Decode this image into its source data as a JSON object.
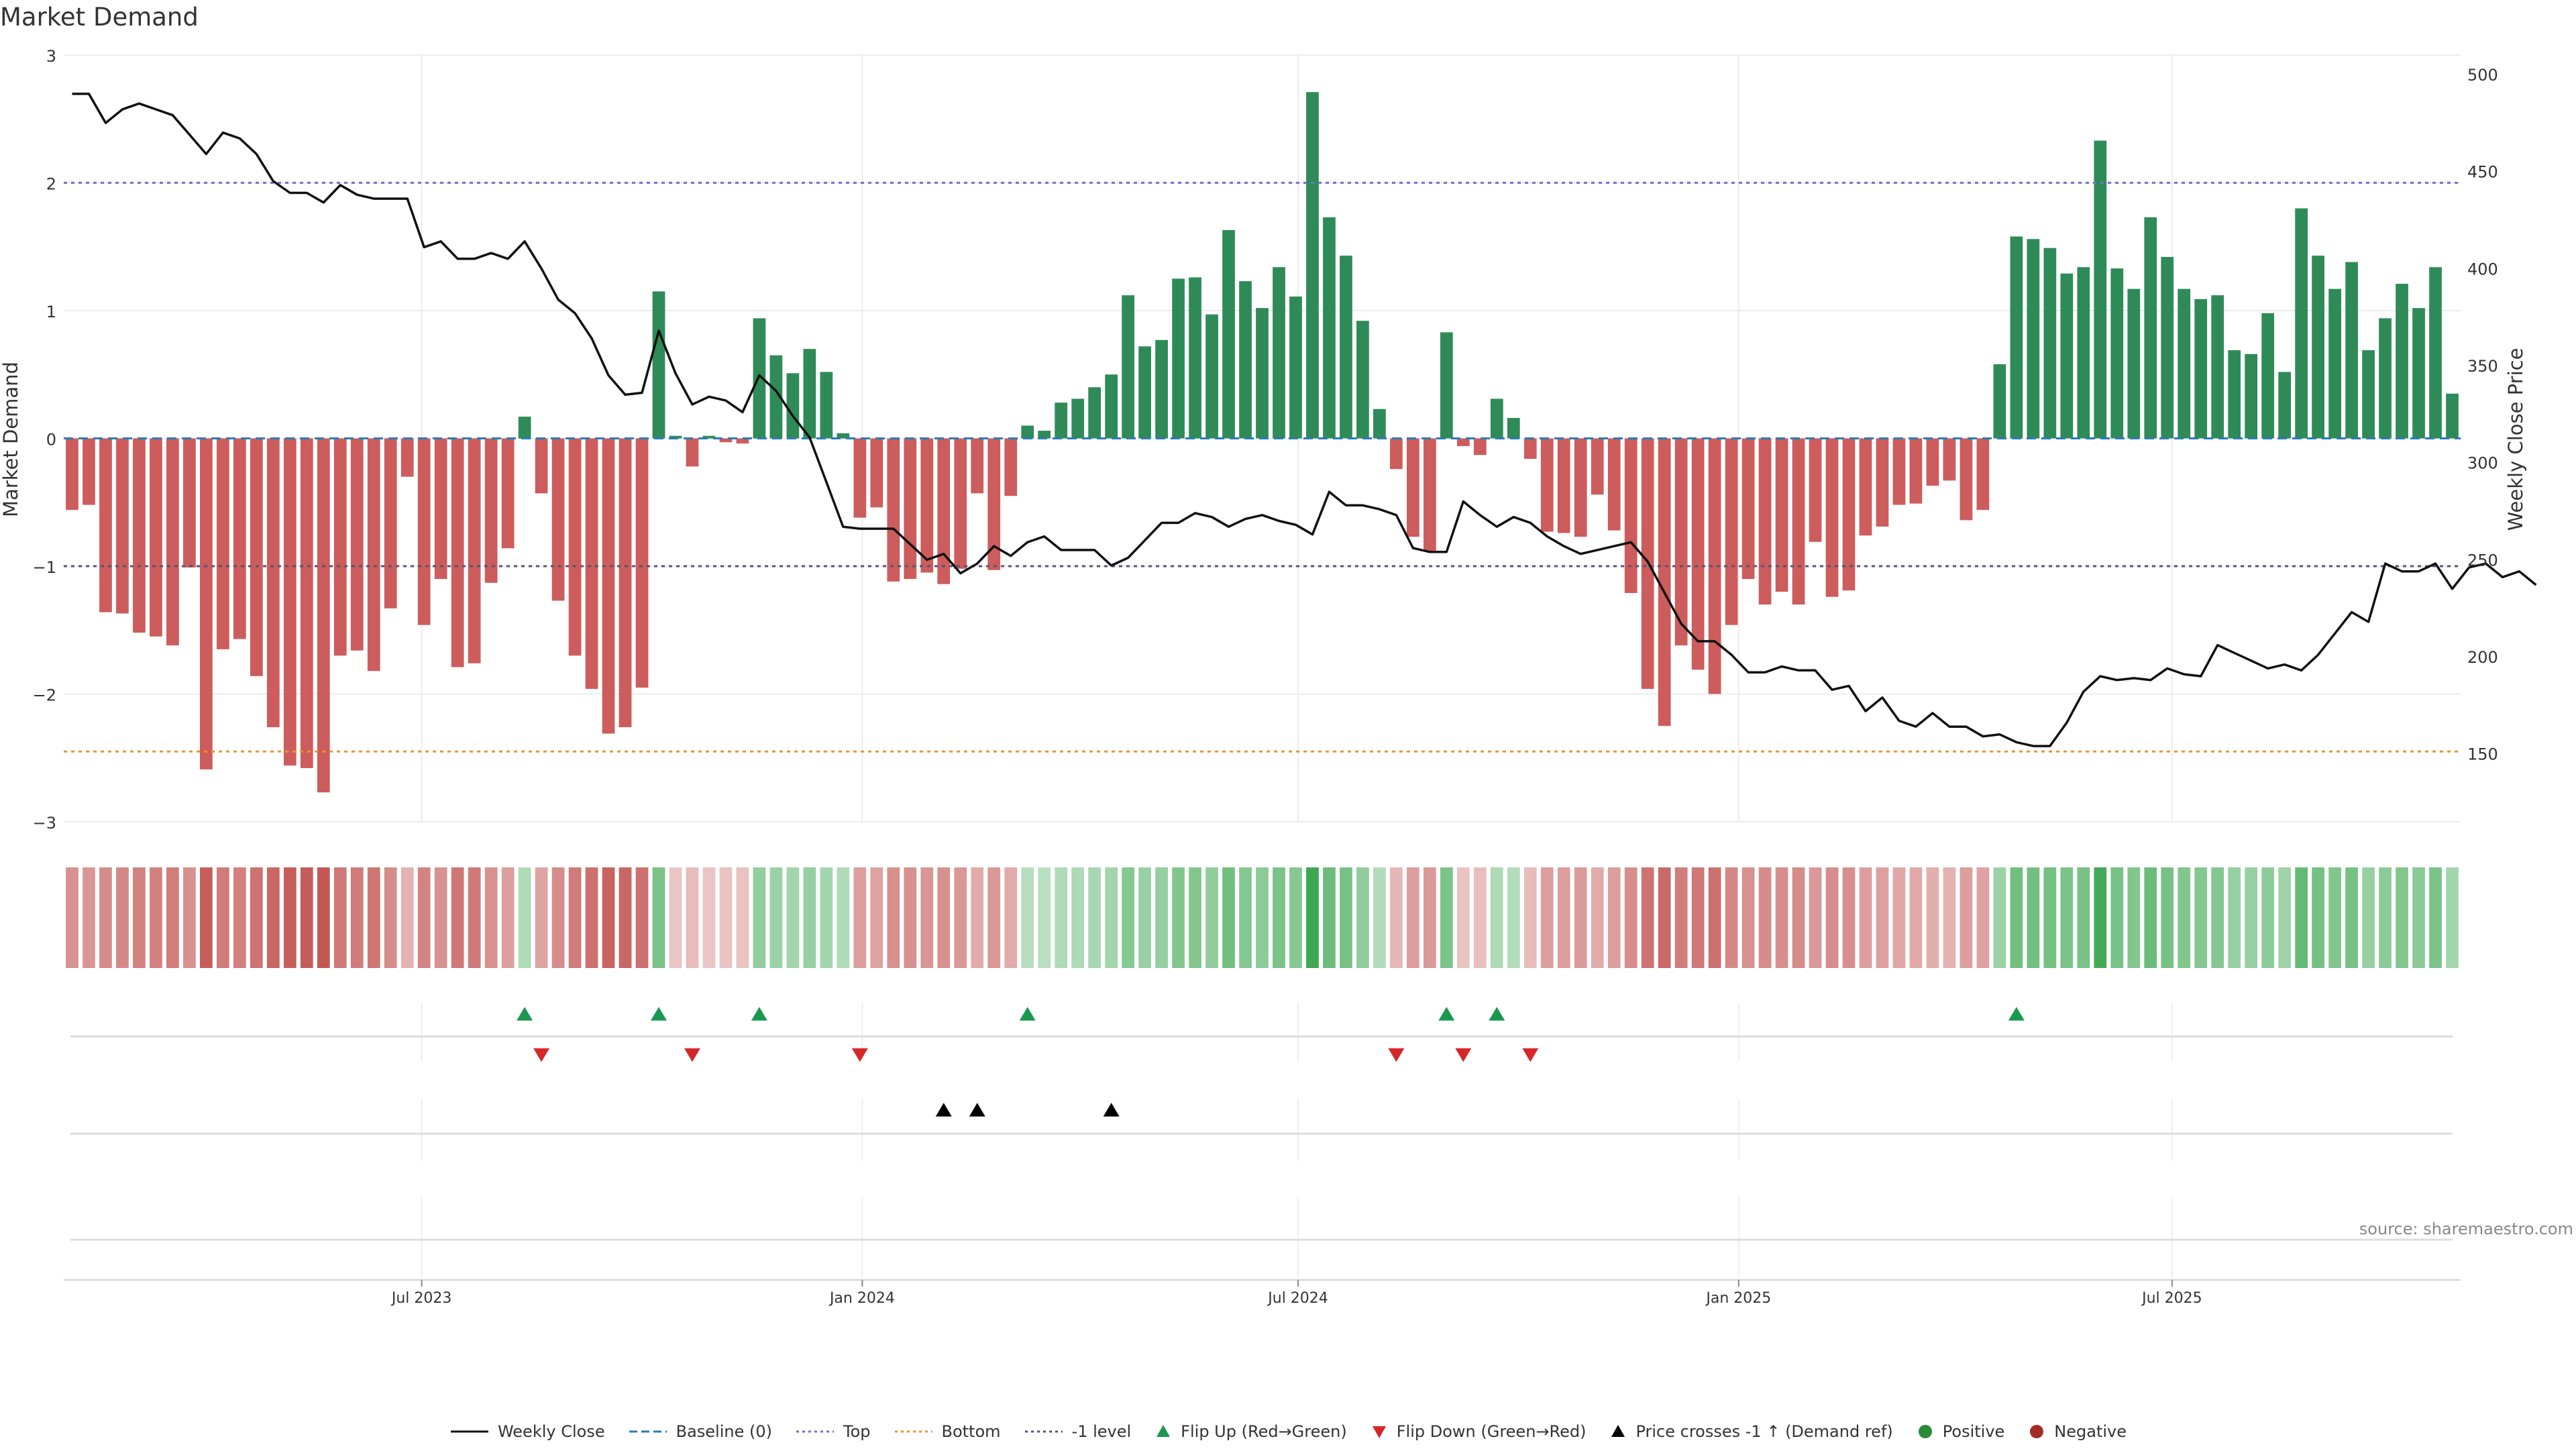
{
  "page": {
    "title": "Market Demand",
    "source": "source: sharemaestro.com"
  },
  "legend": [
    {
      "key": "close",
      "label": "Weekly Close",
      "style": "line",
      "color": "#111111"
    },
    {
      "key": "baseline",
      "label": "Baseline (0)",
      "style": "dash",
      "color": "#2b7bb9"
    },
    {
      "key": "top",
      "label": "Top",
      "style": "dot",
      "color": "#7b6fc9"
    },
    {
      "key": "bottom",
      "label": "Bottom",
      "style": "dot",
      "color": "#e8952f"
    },
    {
      "key": "minus1",
      "label": "-1 level",
      "style": "dot",
      "color": "#555577"
    },
    {
      "key": "flipup",
      "label": "Flip Up (Red→Green)",
      "style": "tri-up",
      "color": "#1a9850"
    },
    {
      "key": "flipdown",
      "label": "Flip Down (Green→Red)",
      "style": "tri-down",
      "color": "#d62728"
    },
    {
      "key": "cross",
      "label": "Price crosses -1 ↑ (Demand ref)",
      "style": "tri-up",
      "color": "#000000"
    },
    {
      "key": "positive",
      "label": "Positive",
      "style": "circle",
      "color": "#2a8a3a"
    },
    {
      "key": "negative",
      "label": "Negative",
      "style": "circle",
      "color": "#a52a2a"
    }
  ],
  "colors": {
    "positive_bar": "#2e8b57",
    "negative_bar": "#cd5c5c",
    "price_line": "#111111",
    "grid": "#ececec"
  },
  "chart_data": {
    "type": "bar",
    "ylabel": "Market Demand",
    "y2label": "Weekly Close Price",
    "ylim": [
      -3,
      3
    ],
    "y2lim": [
      115,
      510
    ],
    "yticks": [
      "3",
      "2",
      "1",
      "0",
      "−1",
      "−2",
      "−3"
    ],
    "y2ticks": [
      "500",
      "450",
      "400",
      "350",
      "300",
      "250",
      "200",
      "150"
    ],
    "xticks": [
      "Jul 2023",
      "Jan 2024",
      "Jul 2024",
      "Jan 2025",
      "Jul 2025"
    ],
    "xtick_dates": [
      "2023-07-01",
      "2024-01-01",
      "2024-07-01",
      "2025-01-01",
      "2025-07-01"
    ],
    "start_date": "2023-02-05",
    "week_days": 7,
    "reference_lines": {
      "top": 2.0,
      "bottom": -2.45,
      "minus1": -1.0,
      "baseline": 0
    },
    "demand": [
      -0.56,
      -0.52,
      -1.36,
      -1.37,
      -1.52,
      -1.55,
      -1.62,
      -1.01,
      -2.59,
      -1.65,
      -1.57,
      -1.86,
      -2.26,
      -2.56,
      -2.58,
      -2.77,
      -1.7,
      -1.66,
      -1.82,
      -1.33,
      -0.3,
      -1.46,
      -1.1,
      -1.79,
      -1.76,
      -1.13,
      -0.86,
      0.17,
      -0.43,
      -1.27,
      -1.7,
      -1.96,
      -2.31,
      -2.26,
      -1.95,
      1.15,
      0.02,
      -0.22,
      0.02,
      -0.03,
      -0.04,
      0.94,
      0.65,
      0.51,
      0.7,
      0.52,
      0.04,
      -0.62,
      -0.54,
      -1.12,
      -1.1,
      -1.05,
      -1.14,
      -1.02,
      -0.43,
      -1.03,
      -0.45,
      0.1,
      0.06,
      0.28,
      0.31,
      0.4,
      0.5,
      1.12,
      0.72,
      0.77,
      1.25,
      1.26,
      0.97,
      1.63,
      1.23,
      1.02,
      1.34,
      1.11,
      2.71,
      1.73,
      1.43,
      0.92,
      0.23,
      -0.24,
      -0.77,
      -0.88,
      0.83,
      -0.06,
      -0.13,
      0.31,
      0.16,
      -0.16,
      -0.73,
      -0.74,
      -0.77,
      -0.44,
      -0.72,
      -1.21,
      -1.96,
      -2.25,
      -1.62,
      -1.81,
      -2.0,
      -1.46,
      -1.1,
      -1.3,
      -1.2,
      -1.3,
      -0.81,
      -1.24,
      -1.19,
      -0.76,
      -0.69,
      -0.52,
      -0.51,
      -0.37,
      -0.33,
      -0.64,
      -0.56,
      0.58,
      1.58,
      1.56,
      1.49,
      1.29,
      1.34,
      2.33,
      1.33,
      1.17,
      1.73,
      1.42,
      1.17,
      1.09,
      1.12,
      0.69,
      0.66,
      0.98,
      0.52,
      1.8,
      1.43,
      1.17,
      1.38,
      0.69,
      0.94,
      1.21,
      1.02,
      1.34,
      0.35
    ],
    "close": [
      490,
      490,
      475,
      482,
      485,
      482,
      479,
      469,
      459,
      470,
      467,
      459,
      445,
      439,
      439,
      434,
      443,
      438,
      436,
      436,
      436,
      411,
      414,
      405,
      405,
      408,
      405,
      414,
      400,
      384,
      377,
      364,
      345,
      335,
      336,
      368,
      346,
      330,
      334,
      332,
      326,
      345,
      337,
      324,
      313,
      290,
      267,
      266,
      266,
      266,
      258,
      250,
      253,
      243,
      248,
      257,
      252,
      259,
      262,
      255,
      255,
      255,
      247,
      251,
      260,
      269,
      269,
      274,
      272,
      267,
      271,
      273,
      270,
      268,
      263,
      285,
      278,
      278,
      276,
      273,
      256,
      254,
      254,
      280,
      273,
      267,
      272,
      269,
      262,
      257,
      253,
      255,
      257,
      259,
      249,
      233,
      217,
      208,
      208,
      201,
      192,
      192,
      195,
      193,
      193,
      183,
      185,
      172,
      179,
      167,
      164,
      171,
      164,
      164,
      159,
      160,
      156,
      154,
      154,
      166,
      182,
      190,
      188,
      189,
      188,
      194,
      191,
      190,
      206,
      202,
      198,
      194,
      196,
      193,
      201,
      212,
      223,
      218,
      248,
      244,
      244,
      248,
      235,
      246,
      248,
      241,
      244,
      237
    ]
  },
  "heatmap": {
    "levels": [
      -0.56,
      -0.52,
      -0.6,
      -0.62,
      -0.66,
      -0.67,
      -0.7,
      -0.55,
      -0.95,
      -0.72,
      -0.68,
      -0.78,
      -0.88,
      -0.95,
      -0.96,
      -1.0,
      -0.73,
      -0.71,
      -0.76,
      -0.6,
      -0.3,
      -0.65,
      -0.55,
      -0.74,
      -0.73,
      -0.55,
      -0.45,
      0.22,
      -0.4,
      -0.6,
      -0.72,
      -0.8,
      -0.9,
      -0.88,
      -0.8,
      0.55,
      -0.15,
      -0.22,
      -0.15,
      -0.16,
      -0.17,
      0.4,
      0.35,
      0.3,
      0.38,
      0.3,
      0.22,
      -0.45,
      -0.42,
      -0.55,
      -0.55,
      -0.52,
      -0.55,
      -0.5,
      -0.35,
      -0.5,
      -0.35,
      0.18,
      0.16,
      0.22,
      0.23,
      0.27,
      0.3,
      0.48,
      0.36,
      0.38,
      0.52,
      0.52,
      0.42,
      0.62,
      0.5,
      0.44,
      0.55,
      0.48,
      0.95,
      0.65,
      0.58,
      0.42,
      0.2,
      -0.25,
      -0.45,
      -0.48,
      0.55,
      -0.18,
      -0.2,
      0.23,
      0.2,
      -0.22,
      -0.45,
      -0.45,
      -0.47,
      -0.35,
      -0.45,
      -0.58,
      -0.78,
      -0.85,
      -0.7,
      -0.74,
      -0.8,
      -0.62,
      -0.55,
      -0.6,
      -0.57,
      -0.6,
      -0.48,
      -0.58,
      -0.57,
      -0.45,
      -0.43,
      -0.38,
      -0.37,
      -0.33,
      -0.3,
      -0.44,
      -0.42,
      0.35,
      0.62,
      0.61,
      0.6,
      0.55,
      0.57,
      0.9,
      0.57,
      0.52,
      0.66,
      0.58,
      0.52,
      0.5,
      0.5,
      0.38,
      0.38,
      0.44,
      0.32,
      0.7,
      0.6,
      0.52,
      0.58,
      0.38,
      0.44,
      0.52,
      0.46,
      0.55,
      0.3
    ]
  },
  "markers": {
    "flip_up": [
      27,
      35,
      41,
      57,
      82,
      85,
      116
    ],
    "flip_down": [
      28,
      37,
      47,
      79,
      83,
      87
    ],
    "cross_up": [
      52,
      54,
      62
    ]
  }
}
